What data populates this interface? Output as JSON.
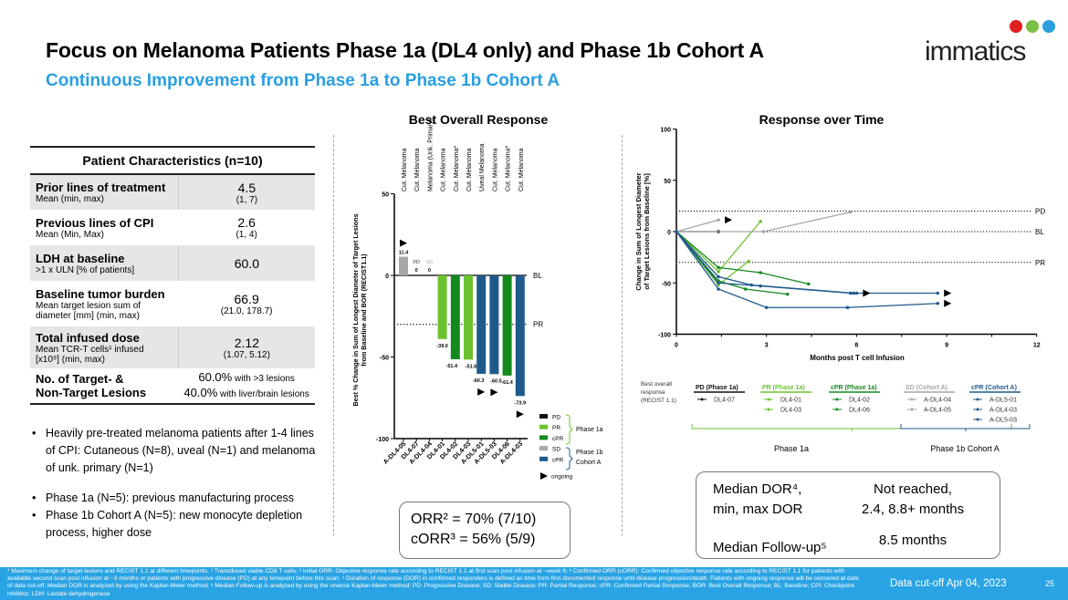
{
  "header": {
    "title": "Focus on Melanoma Patients Phase 1a (DL4 only) and Phase 1b Cohort A",
    "subtitle": "Continuous Improvement from Phase 1a to Phase 1b Cohort A",
    "logo_text": "immatics"
  },
  "colors": {
    "accent": "#2a9fe0",
    "footer": "#29a3e3",
    "pd": "#111111",
    "pr": "#6cc22e",
    "cpr": "#14891e",
    "sd": "#a6a6a8",
    "cpr_cohort": "#1f5a8c"
  },
  "table": {
    "title": "Patient Characteristics (n=10)",
    "rows": [
      {
        "label": "Prior lines of treatment",
        "sub": "Mean (min, max)",
        "value": "4.5",
        "range": "(1, 7)"
      },
      {
        "label": "Previous lines of CPI",
        "sub": "Mean (Min, Max)",
        "value": "2.6",
        "range": "(1, 4)"
      },
      {
        "label": "LDH at baseline",
        "sub": ">1 x ULN [% of patients]",
        "value": "60.0",
        "range": ""
      },
      {
        "label": "Baseline tumor burden",
        "sub": "Mean target lesion sum of diameter [mm] (min, max)",
        "value": "66.9",
        "range": "(21.0, 178.7)"
      },
      {
        "label": "Total infused dose",
        "sub": "Mean TCR-T cells¹ infused [x10⁹] (min, max)",
        "value": "2.12",
        "range": "(1.07, 5.12)"
      }
    ],
    "lesions": {
      "label1": "No. of Target- &",
      "label2": "Non-Target Lesions",
      "v1": "60.0%",
      "t1": " with >3 lesions",
      "v2": "40.0%",
      "t2": " with liver/brain lesions"
    }
  },
  "bullets": [
    "Heavily pre-treated melanoma patients after 1-4 lines of CPI: Cutaneous (N=8), uveal (N=1) and melanoma of unk. primary (N=1)",
    "Phase 1a (N=5): previous manufacturing process",
    "Phase 1b Cohort A (N=5): new monocyte depletion process, higher dose"
  ],
  "orr": {
    "line1": "ORR² = 70% (7/10)",
    "line2": "cORR³ = 56% (5/9)"
  },
  "dor": {
    "label1": "Median DOR⁴,",
    "label2": "min, max DOR",
    "value1": "Not reached,",
    "value2": "2.4, 8.8+ months",
    "followup_label": "Median Follow-up⁵",
    "followup_value": "8.5 months"
  },
  "footer": {
    "footnotes": "* Maximum change of target lesions and RECIST 1.1 at different timepoints. ¹ Transduced viable CD8 T cells; ² Initial ORR: Objective response rate according to RECIST 1.1 at first scan post infusion at ~week 6; ³ Confirmed ORR (cORR): Confirmed objective response rate according to RECIST 1.1 for patients with available second scan post infusion at ~3 months or patients with progressive disease (PD) at any timepoint before this scan; ⁴ Duration of response (DOR) in confirmed responders is defined as time from first documented response until disease progression/death. Patients with ongoing response will be censored at date of data cut-off. Median DOR is analyzed by using the Kaplan-Meier method; ⁵ Median Follow-up is analyzed by using the reverse Kaplan-Meier method; PD: Progressive Disease; SD: Stable Disease; PR: Partial Response; cPR: Confirmed Partial Response; BOR: Best Overall Response; BL: Baseline; CPI: Checkpoint inhibitor; LDH: Lactate dehydrogenase",
    "cutoff": "Data cut-off Apr 04, 2023",
    "page": "25"
  },
  "chart_data": [
    {
      "type": "bar",
      "title": "Best Overall Response",
      "ylabel": "Best % Change in Sum of Longest Diameter of Target Lesions from Baseline and BOR (RECIST1.1)",
      "ylim": [
        -100,
        50
      ],
      "yticks": [
        "50",
        "0",
        "-50",
        "-100"
      ],
      "categories": [
        "A-DL4-05",
        "DL4-07",
        "A-DL4-04",
        "DL4-01",
        "DL4-02",
        "DL4-03",
        "A-DL5-01",
        "A-DL5-03",
        "DL4-06",
        "A-DL4-03"
      ],
      "indications": [
        "Cut. Melanoma",
        "Cut. Melanoma",
        "Melanoma (Unk. Primary)",
        "Cut. Melanoma",
        "Cut. Melanoma*",
        "Cut. Melanoma",
        "Uveal Melanoma",
        "Cut. Melanoma",
        "Cut. Melanoma*",
        "Cut. Melanoma"
      ],
      "values": [
        11.4,
        0,
        0,
        -39.0,
        -51.4,
        -51.6,
        -60.3,
        -60.5,
        -61.4,
        -73.9
      ],
      "labels": [
        "11.4",
        "0",
        "0",
        "-39.0",
        "-51.4",
        "-51.6",
        "-60.3",
        "-60.5",
        "-61.4",
        "-73.9"
      ],
      "response": [
        "sd",
        "pd",
        "sd",
        "pr",
        "cpr",
        "pr",
        "cpr_cohort",
        "cpr_cohort",
        "cpr",
        "cpr_cohort"
      ],
      "zero_tags": [
        "",
        "PD",
        "SD",
        "",
        "",
        "",
        "",
        "",
        "",
        ""
      ],
      "ongoing": [
        true,
        false,
        false,
        false,
        false,
        false,
        true,
        true,
        false,
        true
      ],
      "ref_lines": [
        {
          "label": "BL",
          "value": 0
        },
        {
          "label": "PR",
          "value": -30
        }
      ],
      "legend": {
        "items": [
          {
            "label": "PD",
            "key": "pd"
          },
          {
            "label": "PR",
            "key": "pr"
          },
          {
            "label": "cPR",
            "key": "cpr"
          },
          {
            "label": "SD",
            "key": "sd"
          },
          {
            "label": "cPR",
            "key": "cpr_cohort"
          }
        ],
        "group1": "Phase 1a",
        "group2a": "Phase 1b",
        "group2b": "Cohort A",
        "ongoing": "ongoing"
      }
    },
    {
      "type": "line",
      "title": "Response over Time",
      "xlabel": "Months post T cell Infusion",
      "ylabel1": "Change in Sum of Longest Diameter",
      "ylabel2": "of Target Lesions from Baseline [%]",
      "xlim": [
        0,
        12
      ],
      "ylim": [
        -100,
        100
      ],
      "xticks": [
        "0",
        "3",
        "6",
        "9",
        "12"
      ],
      "yticks": [
        "100",
        "50",
        "0",
        "-50",
        "-100"
      ],
      "ref_lines": [
        {
          "label": "PD",
          "value": 20
        },
        {
          "label": "BL",
          "value": 0
        },
        {
          "label": "PR",
          "value": -30
        }
      ],
      "legend_caption": [
        "Best overall",
        "response",
        "(RECIST 1.1)"
      ],
      "groups": [
        {
          "title": "PD (Phase 1a)",
          "key": "pd"
        },
        {
          "title": "PR (Phase 1a)",
          "key": "pr"
        },
        {
          "title": "cPR (Phase 1a)",
          "key": "cpr"
        },
        {
          "title": "SD (Cohort A)",
          "key": "sd"
        },
        {
          "title": "cPR (Cohort A)",
          "key": "cpr_cohort"
        }
      ],
      "brackets": [
        "Phase 1a",
        "Phase 1b Cohort A"
      ],
      "series": [
        {
          "name": "DL4-07",
          "group": 0,
          "ongoing": false,
          "points": [
            [
              0,
              0
            ],
            [
              1.4,
              0
            ]
          ]
        },
        {
          "name": "DL4-01",
          "group": 1,
          "ongoing": false,
          "points": [
            [
              0,
              0
            ],
            [
              1.4,
              -39
            ],
            [
              2.8,
              10
            ]
          ]
        },
        {
          "name": "DL4-03",
          "group": 1,
          "ongoing": false,
          "points": [
            [
              0,
              0
            ],
            [
              1.4,
              -52
            ],
            [
              2.4,
              -29
            ]
          ]
        },
        {
          "name": "DL4-02",
          "group": 2,
          "ongoing": false,
          "points": [
            [
              0,
              0
            ],
            [
              1.4,
              -35
            ],
            [
              2.8,
              -40
            ],
            [
              4.4,
              -51
            ]
          ]
        },
        {
          "name": "DL4-06",
          "group": 2,
          "ongoing": false,
          "points": [
            [
              0,
              0
            ],
            [
              1.4,
              -48
            ],
            [
              2.3,
              -56
            ],
            [
              3.7,
              -61
            ]
          ]
        },
        {
          "name": "A-DL4-04",
          "group": 3,
          "ongoing": false,
          "points": [
            [
              0,
              0
            ],
            [
              2.9,
              0
            ],
            [
              5.8,
              19
            ]
          ]
        },
        {
          "name": "A-DL4-05",
          "group": 3,
          "ongoing": true,
          "points": [
            [
              0,
              0
            ],
            [
              1.4,
              11.4
            ]
          ]
        },
        {
          "name": "A-DL5-01",
          "group": 4,
          "ongoing": true,
          "points": [
            [
              0,
              0
            ],
            [
              1.4,
              -44
            ],
            [
              2.5,
              -52
            ],
            [
              5.9,
              -60
            ],
            [
              8.7,
              -60
            ]
          ]
        },
        {
          "name": "A-DL4-03",
          "group": 4,
          "ongoing": true,
          "points": [
            [
              0,
              0
            ],
            [
              1.4,
              -56
            ],
            [
              3.0,
              -74
            ],
            [
              5.7,
              -74
            ],
            [
              8.7,
              -70
            ]
          ]
        },
        {
          "name": "A-DL5-03",
          "group": 4,
          "ongoing": true,
          "points": [
            [
              0,
              0
            ],
            [
              1.4,
              -50
            ],
            [
              2.8,
              -53
            ],
            [
              5.8,
              -60
            ],
            [
              6.0,
              -60
            ]
          ]
        }
      ]
    }
  ]
}
